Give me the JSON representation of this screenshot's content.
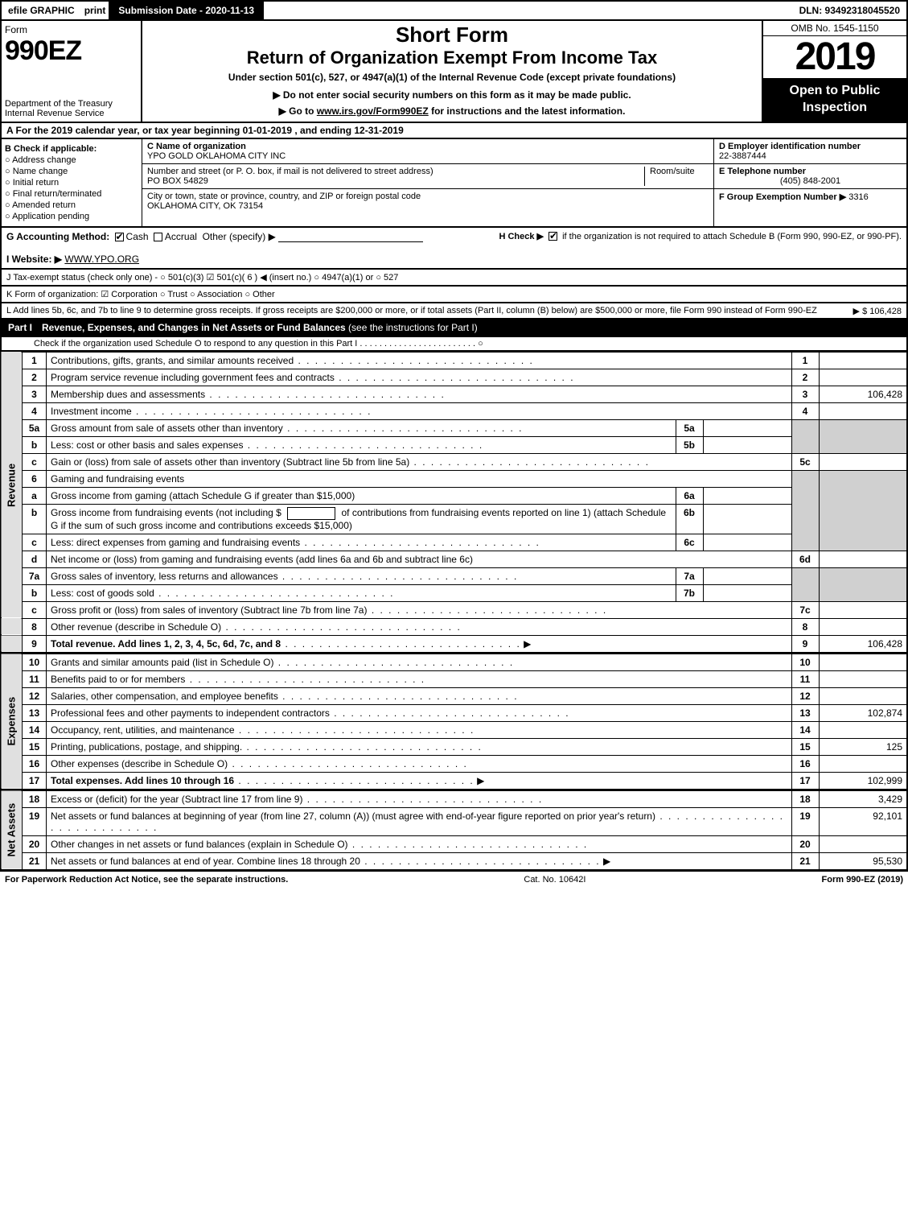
{
  "topbar": {
    "efile": "efile GRAPHIC",
    "print": "print",
    "submission": "Submission Date - 2020-11-13",
    "dln": "DLN: 93492318045520"
  },
  "header": {
    "form_label": "Form",
    "form_no": "990EZ",
    "dept": "Department of the Treasury",
    "irs": "Internal Revenue Service",
    "short_form": "Short Form",
    "title": "Return of Organization Exempt From Income Tax",
    "subtitle": "Under section 501(c), 527, or 4947(a)(1) of the Internal Revenue Code (except private foundations)",
    "notice": "▶ Do not enter social security numbers on this form as it may be made public.",
    "goto_pre": "▶ Go to ",
    "goto_link": "www.irs.gov/Form990EZ",
    "goto_post": " for instructions and the latest information.",
    "omb": "OMB No. 1545-1150",
    "year": "2019",
    "open": "Open to Public Inspection"
  },
  "row_a": "A For the 2019 calendar year, or tax year beginning 01-01-2019 , and ending 12-31-2019",
  "box_b": {
    "label": "B  Check if applicable:",
    "addr": "Address change",
    "name": "Name change",
    "initial": "Initial return",
    "final": "Final return/terminated",
    "amended": "Amended return",
    "pending": "Application pending"
  },
  "box_c": {
    "c_label": "C Name of organization",
    "org": "YPO GOLD OKLAHOMA CITY INC",
    "addr_label": "Number and street (or P. O. box, if mail is not delivered to street address)",
    "addr": "PO BOX 54829",
    "room_label": "Room/suite",
    "city_label": "City or town, state or province, country, and ZIP or foreign postal code",
    "city": "OKLAHOMA CITY, OK   73154"
  },
  "box_d": {
    "d_label": "D Employer identification number",
    "ein": "22-3887444",
    "e_label": "E Telephone number",
    "phone": "(405) 848-2001",
    "f_label": "F Group Exemption Number  ▶",
    "f_val": "3316"
  },
  "row_g": {
    "g_label": "G Accounting Method:",
    "cash": "Cash",
    "accrual": "Accrual",
    "other": "Other (specify) ▶",
    "h_label": "H  Check ▶",
    "h_text": "if the organization is not required to attach Schedule B (Form 990, 990-EZ, or 990-PF)."
  },
  "row_i": {
    "label": "I Website: ▶",
    "val": "WWW.YPO.ORG"
  },
  "row_j": "J Tax-exempt status (check only one) - ○ 501(c)(3)  ☑ 501(c)( 6 ) ◀ (insert no.)  ○ 4947(a)(1) or  ○ 527",
  "row_k": "K Form of organization:   ☑ Corporation   ○ Trust   ○ Association   ○ Other",
  "row_l": {
    "text": "L Add lines 5b, 6c, and 7b to line 9 to determine gross receipts. If gross receipts are $200,000 or more, or if total assets (Part II, column (B) below) are $500,000 or more, file Form 990 instead of Form 990-EZ",
    "amt": "▶ $ 106,428"
  },
  "part1": {
    "title": "Part I",
    "heading": "Revenue, Expenses, and Changes in Net Assets or Fund Balances",
    "note": "(see the instructions for Part I)",
    "sub": "Check if the organization used Schedule O to respond to any question in this Part I . . . . . . . . . . . . . . . . . . . . . . . . ○"
  },
  "sections": {
    "revenue": "Revenue",
    "expenses": "Expenses",
    "netassets": "Net Assets"
  },
  "lines": {
    "l1": {
      "n": "1",
      "d": "Contributions, gifts, grants, and similar amounts received",
      "c": "1",
      "a": ""
    },
    "l2": {
      "n": "2",
      "d": "Program service revenue including government fees and contracts",
      "c": "2",
      "a": ""
    },
    "l3": {
      "n": "3",
      "d": "Membership dues and assessments",
      "c": "3",
      "a": "106,428"
    },
    "l4": {
      "n": "4",
      "d": "Investment income",
      "c": "4",
      "a": ""
    },
    "l5a": {
      "n": "5a",
      "d": "Gross amount from sale of assets other than inventory",
      "ic": "5a"
    },
    "l5b": {
      "n": "b",
      "d": "Less: cost or other basis and sales expenses",
      "ic": "5b"
    },
    "l5c": {
      "n": "c",
      "d": "Gain or (loss) from sale of assets other than inventory (Subtract line 5b from line 5a)",
      "c": "5c",
      "a": ""
    },
    "l6": {
      "n": "6",
      "d": "Gaming and fundraising events"
    },
    "l6a": {
      "n": "a",
      "d": "Gross income from gaming (attach Schedule G if greater than $15,000)",
      "ic": "6a"
    },
    "l6b": {
      "n": "b",
      "d1": "Gross income from fundraising events (not including $",
      "d2": "of contributions from fundraising events reported on line 1) (attach Schedule G if the sum of such gross income and contributions exceeds $15,000)",
      "ic": "6b"
    },
    "l6c": {
      "n": "c",
      "d": "Less: direct expenses from gaming and fundraising events",
      "ic": "6c"
    },
    "l6d": {
      "n": "d",
      "d": "Net income or (loss) from gaming and fundraising events (add lines 6a and 6b and subtract line 6c)",
      "c": "6d",
      "a": ""
    },
    "l7a": {
      "n": "7a",
      "d": "Gross sales of inventory, less returns and allowances",
      "ic": "7a"
    },
    "l7b": {
      "n": "b",
      "d": "Less: cost of goods sold",
      "ic": "7b"
    },
    "l7c": {
      "n": "c",
      "d": "Gross profit or (loss) from sales of inventory (Subtract line 7b from line 7a)",
      "c": "7c",
      "a": ""
    },
    "l8": {
      "n": "8",
      "d": "Other revenue (describe in Schedule O)",
      "c": "8",
      "a": ""
    },
    "l9": {
      "n": "9",
      "d": "Total revenue. Add lines 1, 2, 3, 4, 5c, 6d, 7c, and 8",
      "c": "9",
      "a": "106,428",
      "arrow": true,
      "bold": true
    },
    "l10": {
      "n": "10",
      "d": "Grants and similar amounts paid (list in Schedule O)",
      "c": "10",
      "a": ""
    },
    "l11": {
      "n": "11",
      "d": "Benefits paid to or for members",
      "c": "11",
      "a": ""
    },
    "l12": {
      "n": "12",
      "d": "Salaries, other compensation, and employee benefits",
      "c": "12",
      "a": ""
    },
    "l13": {
      "n": "13",
      "d": "Professional fees and other payments to independent contractors",
      "c": "13",
      "a": "102,874"
    },
    "l14": {
      "n": "14",
      "d": "Occupancy, rent, utilities, and maintenance",
      "c": "14",
      "a": ""
    },
    "l15": {
      "n": "15",
      "d": "Printing, publications, postage, and shipping.",
      "c": "15",
      "a": "125"
    },
    "l16": {
      "n": "16",
      "d": "Other expenses (describe in Schedule O)",
      "c": "16",
      "a": ""
    },
    "l17": {
      "n": "17",
      "d": "Total expenses. Add lines 10 through 16",
      "c": "17",
      "a": "102,999",
      "arrow": true,
      "bold": true
    },
    "l18": {
      "n": "18",
      "d": "Excess or (deficit) for the year (Subtract line 17 from line 9)",
      "c": "18",
      "a": "3,429"
    },
    "l19": {
      "n": "19",
      "d": "Net assets or fund balances at beginning of year (from line 27, column (A)) (must agree with end-of-year figure reported on prior year's return)",
      "c": "19",
      "a": "92,101"
    },
    "l20": {
      "n": "20",
      "d": "Other changes in net assets or fund balances (explain in Schedule O)",
      "c": "20",
      "a": ""
    },
    "l21": {
      "n": "21",
      "d": "Net assets or fund balances at end of year. Combine lines 18 through 20",
      "c": "21",
      "a": "95,530",
      "arrow": true
    }
  },
  "footer": {
    "fpra": "For Paperwork Reduction Act Notice, see the separate instructions.",
    "cat": "Cat. No. 10642I",
    "formno": "Form 990-EZ (2019)"
  }
}
